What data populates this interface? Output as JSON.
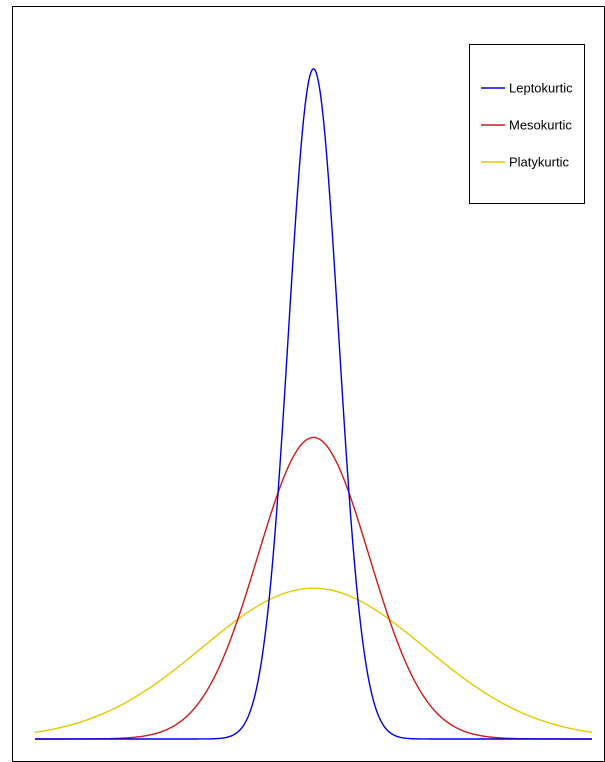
{
  "chart_data": {
    "type": "line",
    "title": "",
    "xlabel": "",
    "ylabel": "",
    "grid": false,
    "legend": "top-right",
    "series": [
      {
        "name": "Leptokurtic",
        "color": "#0000e0",
        "mean": 0,
        "sd": 0.45
      },
      {
        "name": "Mesokurtic",
        "color": "#cc1a1a",
        "mean": 0,
        "sd": 1.0
      },
      {
        "name": "Platykurtic",
        "color": "#e6c800",
        "mean": 0,
        "sd": 2.0
      }
    ],
    "xlim": [
      -5,
      5
    ],
    "ylim": [
      0,
      0.93
    ]
  }
}
